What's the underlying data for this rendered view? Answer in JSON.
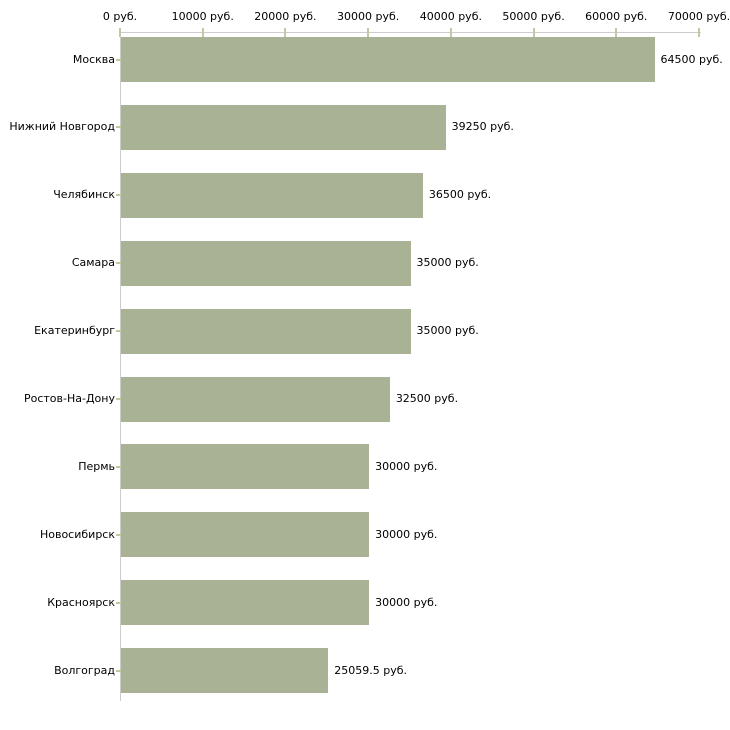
{
  "chart_data": {
    "type": "bar",
    "orientation": "horizontal",
    "title": "",
    "xlabel": "",
    "ylabel": "",
    "unit": "руб.",
    "categories": [
      "Москва",
      "Нижний Новгород",
      "Челябинск",
      "Самара",
      "Екатеринбург",
      "Ростов-На-Дону",
      "Пермь",
      "Новосибирск",
      "Красноярск",
      "Волгоград"
    ],
    "values": [
      64500,
      39250,
      36500,
      35000,
      35000,
      32500,
      30000,
      30000,
      30000,
      25059.5
    ],
    "value_labels": [
      "64500 руб.",
      "39250 руб.",
      "36500 руб.",
      "35000 руб.",
      "35000 руб.",
      "32500 руб.",
      "30000 руб.",
      "30000 руб.",
      "30000 руб.",
      "25059.5 руб."
    ],
    "x_ticks": [
      0,
      10000,
      20000,
      30000,
      40000,
      50000,
      60000,
      70000
    ],
    "x_tick_labels": [
      "0 руб.",
      "10000 руб.",
      "20000 руб.",
      "30000 руб.",
      "40000 руб.",
      "50000 руб.",
      "60000 руб.",
      "70000 руб."
    ],
    "xlim": [
      0,
      70000
    ],
    "grid": false,
    "legend": false,
    "colors": {
      "bar": "#aab296",
      "axis_line": "#cccccc",
      "tick_mark": "#c5c7a3",
      "text": "#000000",
      "background": "#ffffff"
    }
  }
}
